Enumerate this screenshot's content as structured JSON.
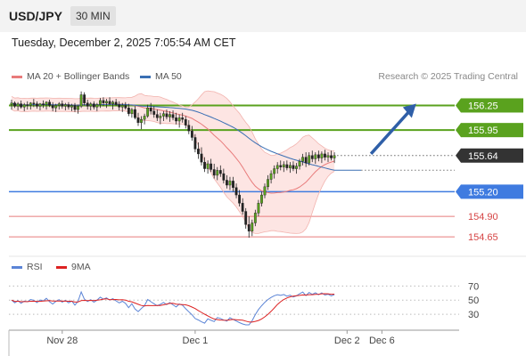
{
  "header": {
    "symbol": "USD/JPY",
    "timeframe": "30 MIN"
  },
  "timestamp": "Tuesday, December 2, 2025 7:05:54 AM CET",
  "credit": "Research © 2025 Trading Central",
  "colors": {
    "resistance": "#5aa21e",
    "support_blue": "#3f7be0",
    "support_red": "#e87b7b",
    "candle_up": "#5aa21e",
    "candle_down": "#222222",
    "ma20": "#e87b7b",
    "ma50": "#3a6fb4",
    "bands_fill": "#fde0de",
    "rsi": "#5b84d6",
    "rsi_ma": "#dd2222",
    "arrow": "#2f5fa8",
    "last_price_bg": "#333333"
  },
  "chart_data": [
    {
      "type": "candlestick",
      "name": "price",
      "legend": [
        {
          "label": "MA 20 + Bollinger Bands",
          "color": "#e87b7b"
        },
        {
          "label": "MA 50",
          "color": "#3a6fb4"
        }
      ],
      "x_ticks": [
        {
          "label": "Nov 28",
          "index": 16
        },
        {
          "label": "Dec 1",
          "index": 58
        },
        {
          "label": "Dec 2",
          "index": 106
        },
        {
          "label": "Dec 6",
          "index": 117
        }
      ],
      "ylim": [
        154.5,
        156.45
      ],
      "levels": [
        {
          "value": 156.25,
          "label": "156.25",
          "kind": "resistance"
        },
        {
          "value": 155.95,
          "label": "155.95",
          "kind": "resistance"
        },
        {
          "value": 155.64,
          "label": "155.64",
          "kind": "last"
        },
        {
          "value": 155.2,
          "label": "155.20",
          "kind": "support_strong"
        },
        {
          "value": 154.9,
          "label": "154.90",
          "kind": "support"
        },
        {
          "value": 154.65,
          "label": "154.65",
          "kind": "support"
        }
      ],
      "target_arrow": {
        "from_index": 113,
        "from_value": 155.64,
        "to_index": 127,
        "to_value": 156.25
      },
      "candles": [
        [
          156.26,
          156.32,
          156.2,
          156.28
        ],
        [
          156.28,
          156.3,
          156.22,
          156.24
        ],
        [
          156.24,
          156.29,
          156.19,
          156.27
        ],
        [
          156.27,
          156.31,
          156.21,
          156.23
        ],
        [
          156.23,
          156.28,
          156.18,
          156.26
        ],
        [
          156.26,
          156.3,
          156.2,
          156.25
        ],
        [
          156.25,
          156.29,
          156.2,
          156.28
        ],
        [
          156.28,
          156.33,
          156.23,
          156.27
        ],
        [
          156.27,
          156.3,
          156.21,
          156.24
        ],
        [
          156.24,
          156.28,
          156.19,
          156.27
        ],
        [
          156.27,
          156.31,
          156.22,
          156.26
        ],
        [
          156.26,
          156.3,
          156.2,
          156.29
        ],
        [
          156.29,
          156.32,
          156.23,
          156.25
        ],
        [
          156.25,
          156.29,
          156.18,
          156.22
        ],
        [
          156.22,
          156.27,
          156.17,
          156.25
        ],
        [
          156.25,
          156.29,
          156.2,
          156.27
        ],
        [
          156.27,
          156.31,
          156.21,
          156.24
        ],
        [
          156.24,
          156.28,
          156.19,
          156.26
        ],
        [
          156.26,
          156.29,
          156.2,
          156.23
        ],
        [
          156.23,
          156.27,
          156.18,
          156.25
        ],
        [
          156.25,
          156.28,
          156.17,
          156.2
        ],
        [
          156.2,
          156.26,
          156.15,
          156.24
        ],
        [
          156.24,
          156.42,
          156.22,
          156.38
        ],
        [
          156.38,
          156.41,
          156.25,
          156.28
        ],
        [
          156.28,
          156.32,
          156.2,
          156.24
        ],
        [
          156.24,
          156.29,
          156.19,
          156.27
        ],
        [
          156.27,
          156.3,
          156.2,
          156.23
        ],
        [
          156.23,
          156.28,
          156.18,
          156.26
        ],
        [
          156.26,
          156.34,
          156.22,
          156.31
        ],
        [
          156.31,
          156.35,
          156.24,
          156.28
        ],
        [
          156.28,
          156.33,
          156.22,
          156.3
        ],
        [
          156.3,
          156.35,
          156.25,
          156.27
        ],
        [
          156.27,
          156.31,
          156.2,
          156.29
        ],
        [
          156.29,
          156.33,
          156.24,
          156.26
        ],
        [
          156.26,
          156.3,
          156.19,
          156.23
        ],
        [
          156.23,
          156.28,
          156.17,
          156.25
        ],
        [
          156.25,
          156.29,
          156.2,
          156.22
        ],
        [
          156.22,
          156.27,
          156.12,
          156.15
        ],
        [
          156.15,
          156.22,
          156.1,
          156.2
        ],
        [
          156.2,
          156.24,
          156.08,
          156.1
        ],
        [
          156.1,
          156.16,
          156.0,
          156.04
        ],
        [
          156.04,
          156.12,
          155.96,
          156.08
        ],
        [
          156.08,
          156.15,
          156.02,
          156.12
        ],
        [
          156.12,
          156.26,
          156.1,
          156.22
        ],
        [
          156.22,
          156.28,
          156.14,
          156.18
        ],
        [
          156.18,
          156.24,
          156.1,
          156.14
        ],
        [
          156.14,
          156.2,
          156.06,
          156.1
        ],
        [
          156.1,
          156.16,
          156.02,
          156.12
        ],
        [
          156.12,
          156.18,
          156.06,
          156.15
        ],
        [
          156.15,
          156.2,
          156.08,
          156.11
        ],
        [
          156.11,
          156.18,
          156.05,
          156.14
        ],
        [
          156.14,
          156.19,
          156.07,
          156.1
        ],
        [
          156.1,
          156.16,
          156.02,
          156.06
        ],
        [
          156.06,
          156.14,
          155.98,
          156.1
        ],
        [
          156.1,
          156.16,
          156.04,
          156.08
        ],
        [
          156.08,
          156.12,
          155.97,
          156.01
        ],
        [
          156.01,
          156.07,
          155.9,
          155.94
        ],
        [
          155.94,
          156.0,
          155.82,
          155.86
        ],
        [
          155.86,
          155.9,
          155.68,
          155.72
        ],
        [
          155.72,
          155.8,
          155.6,
          155.66
        ],
        [
          155.66,
          155.74,
          155.52,
          155.56
        ],
        [
          155.56,
          155.62,
          155.44,
          155.48
        ],
        [
          155.48,
          155.58,
          155.42,
          155.54
        ],
        [
          155.54,
          155.6,
          155.44,
          155.47
        ],
        [
          155.47,
          155.54,
          155.36,
          155.4
        ],
        [
          155.4,
          155.5,
          155.34,
          155.46
        ],
        [
          155.46,
          155.52,
          155.38,
          155.42
        ],
        [
          155.42,
          155.48,
          155.3,
          155.34
        ],
        [
          155.34,
          155.4,
          155.24,
          155.28
        ],
        [
          155.28,
          155.38,
          155.22,
          155.33
        ],
        [
          155.33,
          155.38,
          155.2,
          155.25
        ],
        [
          155.25,
          155.3,
          155.12,
          155.16
        ],
        [
          155.16,
          155.22,
          155.02,
          155.06
        ],
        [
          155.06,
          155.12,
          154.92,
          154.96
        ],
        [
          154.96,
          155.0,
          154.75,
          154.8
        ],
        [
          154.8,
          154.9,
          154.64,
          154.72
        ],
        [
          154.72,
          154.86,
          154.66,
          154.82
        ],
        [
          154.82,
          154.98,
          154.78,
          154.94
        ],
        [
          154.94,
          155.1,
          154.9,
          155.06
        ],
        [
          155.06,
          155.2,
          155.02,
          155.16
        ],
        [
          155.16,
          155.3,
          155.12,
          155.26
        ],
        [
          155.26,
          155.4,
          155.22,
          155.35
        ],
        [
          155.35,
          155.46,
          155.3,
          155.42
        ],
        [
          155.42,
          155.52,
          155.36,
          155.48
        ],
        [
          155.48,
          155.56,
          155.42,
          155.52
        ],
        [
          155.52,
          155.58,
          155.46,
          155.5
        ],
        [
          155.5,
          155.57,
          155.44,
          155.53
        ],
        [
          155.53,
          155.58,
          155.46,
          155.49
        ],
        [
          155.49,
          155.56,
          155.43,
          155.52
        ],
        [
          155.52,
          155.57,
          155.45,
          155.48
        ],
        [
          155.48,
          155.55,
          155.42,
          155.51
        ],
        [
          155.51,
          155.6,
          155.47,
          155.57
        ],
        [
          155.57,
          155.66,
          155.52,
          155.62
        ],
        [
          155.62,
          155.68,
          155.5,
          155.55
        ],
        [
          155.55,
          155.68,
          155.52,
          155.64
        ],
        [
          155.64,
          155.7,
          155.56,
          155.6
        ],
        [
          155.6,
          155.68,
          155.54,
          155.65
        ],
        [
          155.65,
          155.7,
          155.57,
          155.61
        ],
        [
          155.61,
          155.69,
          155.55,
          155.66
        ],
        [
          155.66,
          155.71,
          155.58,
          155.62
        ],
        [
          155.62,
          155.68,
          155.56,
          155.64
        ],
        [
          155.64,
          155.7,
          155.58,
          155.61
        ],
        [
          155.61,
          155.68,
          155.55,
          155.64
        ]
      ]
    },
    {
      "type": "line",
      "name": "rsi-panel",
      "legend": [
        {
          "label": "RSI",
          "color": "#5b84d6"
        },
        {
          "label": "9MA",
          "color": "#dd2222"
        }
      ],
      "y_ticks": [
        70,
        50,
        30
      ],
      "ylim": [
        15,
        78
      ]
    }
  ]
}
